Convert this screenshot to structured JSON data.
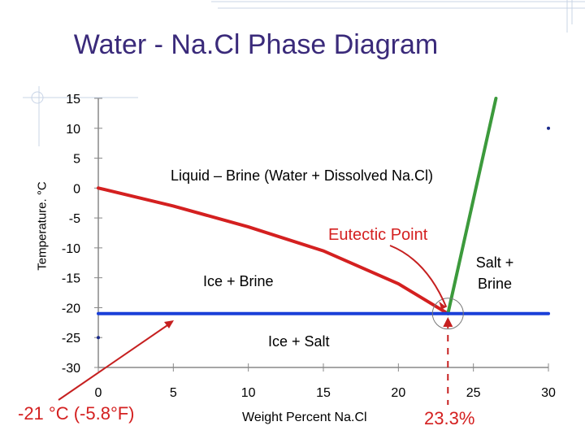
{
  "title": "Water - Na.Cl Phase Diagram",
  "chart_data": {
    "type": "line",
    "title": "Water - Na.Cl Phase Diagram",
    "xlabel": "Weight Percent Na.Cl",
    "ylabel": "Temperature. °C",
    "xlim": [
      0,
      30
    ],
    "ylim": [
      -30,
      15
    ],
    "x_ticks": [
      0,
      5,
      10,
      15,
      20,
      25,
      30
    ],
    "y_ticks": [
      15,
      10,
      5,
      0,
      -5,
      -10,
      -15,
      -20,
      -25,
      -30
    ],
    "grid": false,
    "series": [
      {
        "name": "freezing-curve",
        "color": "#d42020",
        "points": [
          [
            0,
            0
          ],
          [
            5,
            -3
          ],
          [
            10,
            -6.5
          ],
          [
            15,
            -10.5
          ],
          [
            20,
            -16
          ],
          [
            23.3,
            -21
          ]
        ]
      },
      {
        "name": "solubility-line",
        "color": "#3c9a3c",
        "points": [
          [
            23.3,
            -21
          ],
          [
            26.5,
            15
          ]
        ]
      },
      {
        "name": "eutectic-isotherm",
        "color": "#1a3fd8",
        "points": [
          [
            0,
            -21
          ],
          [
            30,
            -21
          ]
        ]
      }
    ],
    "markers": [
      [
        30,
        10
      ],
      [
        0,
        -25
      ]
    ],
    "regions": {
      "liquid": "Liquid – Brine (Water + Dissolved Na.Cl)",
      "ice_brine": "Ice + Brine",
      "ice_salt": "Ice + Salt",
      "salt_brine": "Salt + Brine"
    },
    "annotations": {
      "eutectic_label": "Eutectic Point",
      "eutectic_temp": "-21 °C (-5.8°F)",
      "eutectic_comp": "23.3%"
    }
  }
}
